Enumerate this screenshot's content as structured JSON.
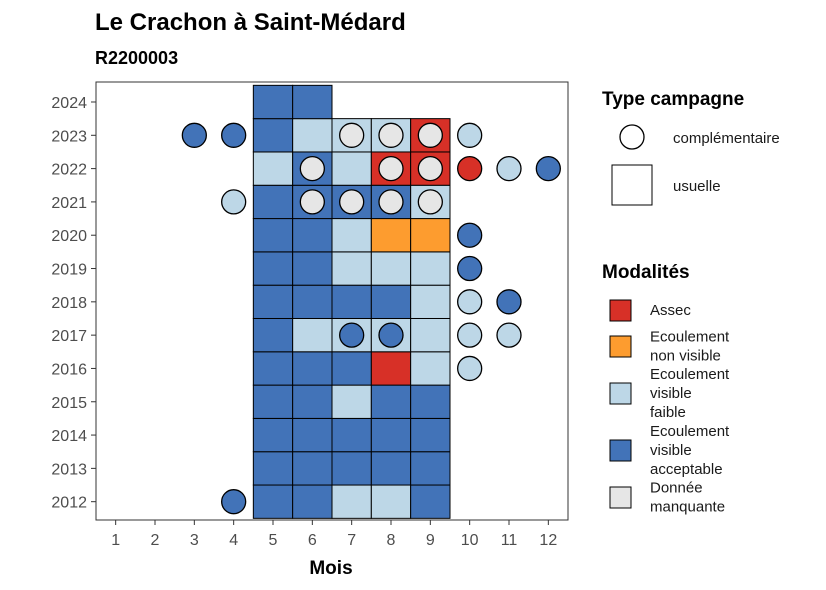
{
  "chart_data": {
    "type": "heatmap",
    "title": "Le Crachon à Saint-Médard",
    "subtitle": "R2200003",
    "xlabel": "Mois",
    "ylabel": "",
    "x_ticks": [
      "1",
      "2",
      "3",
      "4",
      "5",
      "6",
      "7",
      "8",
      "9",
      "10",
      "11",
      "12"
    ],
    "y_ticks": [
      "2012",
      "2013",
      "2014",
      "2015",
      "2016",
      "2017",
      "2018",
      "2019",
      "2020",
      "2021",
      "2022",
      "2023",
      "2024"
    ],
    "xlim": [
      0.5,
      12.5
    ],
    "ylim": [
      2011.45,
      2024.6
    ],
    "grid": false,
    "colors": {
      "assec": "#d73027",
      "ecoulement_non_visible": "#fd9c2f",
      "ecoulement_faible": "#bdd7e7",
      "ecoulement_acceptable": "#4273b8",
      "donnee_manquante": "#e6e6e6"
    },
    "legends": [
      {
        "title": "Type campagne",
        "position": "right",
        "entries": [
          {
            "key": "complementaire",
            "label": "complémentaire",
            "shape": "circle"
          },
          {
            "key": "usuelle",
            "label": "usuelle",
            "shape": "square"
          }
        ]
      },
      {
        "title": "Modalités",
        "position": "right",
        "entries": [
          {
            "key": "assec",
            "lines": [
              "Assec"
            ]
          },
          {
            "key": "ecoulement_non_visible",
            "lines": [
              "Ecoulement",
              "non visible"
            ]
          },
          {
            "key": "ecoulement_faible",
            "lines": [
              "Ecoulement",
              "visible",
              "faible"
            ]
          },
          {
            "key": "ecoulement_acceptable",
            "lines": [
              "Ecoulement",
              "visible",
              "acceptable"
            ]
          },
          {
            "key": "donnee_manquante",
            "lines": [
              "Donnée",
              "manquante"
            ]
          }
        ]
      }
    ],
    "usuelle": [
      {
        "year": 2012,
        "months": {
          "5": "ecoulement_acceptable",
          "6": "ecoulement_acceptable",
          "7": "ecoulement_faible",
          "8": "ecoulement_faible",
          "9": "ecoulement_acceptable"
        }
      },
      {
        "year": 2013,
        "months": {
          "5": "ecoulement_acceptable",
          "6": "ecoulement_acceptable",
          "7": "ecoulement_acceptable",
          "8": "ecoulement_acceptable",
          "9": "ecoulement_acceptable"
        }
      },
      {
        "year": 2014,
        "months": {
          "5": "ecoulement_acceptable",
          "6": "ecoulement_acceptable",
          "7": "ecoulement_acceptable",
          "8": "ecoulement_acceptable",
          "9": "ecoulement_acceptable"
        }
      },
      {
        "year": 2015,
        "months": {
          "5": "ecoulement_acceptable",
          "6": "ecoulement_acceptable",
          "7": "ecoulement_faible",
          "8": "ecoulement_acceptable",
          "9": "ecoulement_acceptable"
        }
      },
      {
        "year": 2016,
        "months": {
          "5": "ecoulement_acceptable",
          "6": "ecoulement_acceptable",
          "7": "ecoulement_acceptable",
          "8": "assec",
          "9": "ecoulement_faible"
        }
      },
      {
        "year": 2017,
        "months": {
          "5": "ecoulement_acceptable",
          "6": "ecoulement_faible",
          "7": "ecoulement_faible",
          "8": "ecoulement_faible",
          "9": "ecoulement_faible"
        }
      },
      {
        "year": 2018,
        "months": {
          "5": "ecoulement_acceptable",
          "6": "ecoulement_acceptable",
          "7": "ecoulement_acceptable",
          "8": "ecoulement_acceptable",
          "9": "ecoulement_faible"
        }
      },
      {
        "year": 2019,
        "months": {
          "5": "ecoulement_acceptable",
          "6": "ecoulement_acceptable",
          "7": "ecoulement_faible",
          "8": "ecoulement_faible",
          "9": "ecoulement_faible"
        }
      },
      {
        "year": 2020,
        "months": {
          "5": "ecoulement_acceptable",
          "6": "ecoulement_acceptable",
          "7": "ecoulement_faible",
          "8": "ecoulement_non_visible",
          "9": "ecoulement_non_visible"
        }
      },
      {
        "year": 2021,
        "months": {
          "5": "ecoulement_acceptable",
          "6": "ecoulement_acceptable",
          "7": "ecoulement_acceptable",
          "8": "ecoulement_acceptable",
          "9": "ecoulement_faible"
        }
      },
      {
        "year": 2022,
        "months": {
          "5": "ecoulement_faible",
          "6": "ecoulement_acceptable",
          "7": "ecoulement_faible",
          "8": "assec",
          "9": "assec"
        }
      },
      {
        "year": 2023,
        "months": {
          "5": "ecoulement_acceptable",
          "6": "ecoulement_faible",
          "7": "ecoulement_faible",
          "8": "ecoulement_faible",
          "9": "assec"
        }
      },
      {
        "year": 2024,
        "months": {
          "5": "ecoulement_acceptable",
          "6": "ecoulement_acceptable"
        }
      }
    ],
    "complementaire": [
      {
        "year": 2012,
        "month": 4,
        "value": "ecoulement_acceptable"
      },
      {
        "year": 2016,
        "month": 10,
        "value": "ecoulement_faible"
      },
      {
        "year": 2017,
        "month": 7,
        "value": "ecoulement_acceptable"
      },
      {
        "year": 2017,
        "month": 8,
        "value": "ecoulement_acceptable"
      },
      {
        "year": 2017,
        "month": 10,
        "value": "ecoulement_faible"
      },
      {
        "year": 2017,
        "month": 11,
        "value": "ecoulement_faible"
      },
      {
        "year": 2018,
        "month": 10,
        "value": "ecoulement_faible"
      },
      {
        "year": 2018,
        "month": 11,
        "value": "ecoulement_acceptable"
      },
      {
        "year": 2019,
        "month": 10,
        "value": "ecoulement_acceptable"
      },
      {
        "year": 2020,
        "month": 10,
        "value": "ecoulement_acceptable"
      },
      {
        "year": 2021,
        "month": 4,
        "value": "ecoulement_faible"
      },
      {
        "year": 2021,
        "month": 6,
        "value": "donnee_manquante"
      },
      {
        "year": 2021,
        "month": 7,
        "value": "donnee_manquante"
      },
      {
        "year": 2021,
        "month": 8,
        "value": "donnee_manquante"
      },
      {
        "year": 2021,
        "month": 9,
        "value": "donnee_manquante"
      },
      {
        "year": 2022,
        "month": 6,
        "value": "donnee_manquante"
      },
      {
        "year": 2022,
        "month": 8,
        "value": "donnee_manquante"
      },
      {
        "year": 2022,
        "month": 9,
        "value": "donnee_manquante"
      },
      {
        "year": 2022,
        "month": 10,
        "value": "assec"
      },
      {
        "year": 2022,
        "month": 11,
        "value": "ecoulement_faible"
      },
      {
        "year": 2022,
        "month": 12,
        "value": "ecoulement_acceptable"
      },
      {
        "year": 2023,
        "month": 3,
        "value": "ecoulement_acceptable"
      },
      {
        "year": 2023,
        "month": 4,
        "value": "ecoulement_acceptable"
      },
      {
        "year": 2023,
        "month": 7,
        "value": "donnee_manquante"
      },
      {
        "year": 2023,
        "month": 8,
        "value": "donnee_manquante"
      },
      {
        "year": 2023,
        "month": 9,
        "value": "donnee_manquante"
      },
      {
        "year": 2023,
        "month": 10,
        "value": "ecoulement_faible"
      }
    ]
  }
}
